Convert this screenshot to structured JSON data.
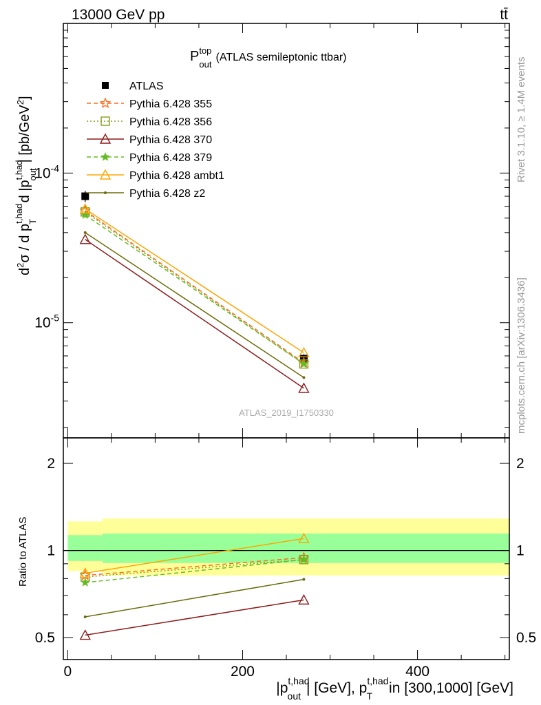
{
  "header": {
    "left_label": "13000 GeV pp",
    "right_label": "tt̄"
  },
  "side_notes": {
    "rivet": "Rivet 3.1.10, ≥ 1.4M events",
    "mcplots": "mcplots.cern.ch [arXiv:1306.3436]"
  },
  "watermark": "ATLAS_2019_I1750330",
  "chart_data": [
    {
      "type": "line",
      "panel": "main",
      "title_main": "P",
      "title_sup": "top",
      "title_sub": "out",
      "title_rest": "(ATLAS semileptonic ttbar)",
      "ylabel": "d²σ / d p_T^{t,had} d |p_out^{t,had}| [pb/GeV²]",
      "yscale": "log",
      "ylim": [
        1.7e-06,
        0.001
      ],
      "xlim": [
        -5,
        505
      ],
      "y_tick_labels": [
        "10^{-5}",
        "10^{-4}"
      ],
      "y_tick_values": [
        1e-05,
        0.0001
      ],
      "legend_position": "top-left",
      "x": [
        20,
        270
      ],
      "series": [
        {
          "name": "ATLAS",
          "color": "#000000",
          "marker": "square",
          "style": "none",
          "values": [
            7e-05,
            5.75e-06
          ],
          "errors": [
            6e-06,
            4e-07
          ]
        },
        {
          "name": "Pythia 6.428 355",
          "color": "#ff6a1a",
          "marker": "star-open",
          "style": "dashed",
          "values": [
            5.6e-05,
            5.4e-06
          ]
        },
        {
          "name": "Pythia 6.428 356",
          "color": "#7fa11a",
          "marker": "square-open",
          "style": "dotted",
          "values": [
            5.5e-05,
            5.3e-06
          ]
        },
        {
          "name": "Pythia 6.428 370",
          "color": "#8b1a1a",
          "marker": "triangle-open",
          "style": "solid",
          "values": [
            3.6e-05,
            3.65e-06
          ]
        },
        {
          "name": "Pythia 6.428 379",
          "color": "#66bb22",
          "marker": "star",
          "style": "dashed",
          "values": [
            5.25e-05,
            5.3e-06
          ]
        },
        {
          "name": "Pythia 6.428 ambt1",
          "color": "#ffa500",
          "marker": "triangle-open",
          "style": "solid",
          "values": [
            5.75e-05,
            6.3e-06
          ]
        },
        {
          "name": "Pythia 6.428 z2",
          "color": "#6b6b0a",
          "marker": "dot",
          "style": "solid",
          "values": [
            4e-05,
            4.3e-06
          ]
        }
      ]
    },
    {
      "type": "line",
      "panel": "ratio",
      "ylabel": "Ratio to ATLAS",
      "xlabel": "|p_out^{t,had}| [GeV], p_T^{t,had} in [300,1000] [GeV]",
      "yscale": "log",
      "ylim": [
        0.42,
        2.45
      ],
      "xlim": [
        -5,
        505
      ],
      "y_tick_labels": [
        "0.5",
        "1",
        "2"
      ],
      "y_tick_values": [
        0.5,
        1,
        2
      ],
      "x_tick_labels": [
        "0",
        "200",
        "400"
      ],
      "x_tick_values": [
        0,
        200,
        400
      ],
      "bands": [
        {
          "x_ranges": [
            [
              0,
              40,
              0.85,
              1.26
            ],
            [
              40,
              505,
              0.82,
              1.29
            ]
          ],
          "color": "#ffff99"
        },
        {
          "x_ranges": [
            [
              0,
              40,
              0.92,
              1.13
            ],
            [
              40,
              505,
              0.905,
              1.145
            ]
          ],
          "color": "#99ff99"
        }
      ],
      "x": [
        20,
        270
      ],
      "series": [
        {
          "name": "Pythia 6.428 355",
          "color": "#ff6a1a",
          "marker": "star-open",
          "style": "dashed",
          "values": [
            0.82,
            0.945
          ]
        },
        {
          "name": "Pythia 6.428 356",
          "color": "#7fa11a",
          "marker": "square-open",
          "style": "dotted",
          "values": [
            0.81,
            0.93
          ]
        },
        {
          "name": "Pythia 6.428 370",
          "color": "#8b1a1a",
          "marker": "triangle-open",
          "style": "solid",
          "values": [
            0.51,
            0.675
          ]
        },
        {
          "name": "Pythia 6.428 379",
          "color": "#66bb22",
          "marker": "star",
          "style": "dashed",
          "values": [
            0.775,
            0.93
          ]
        },
        {
          "name": "Pythia 6.428 ambt1",
          "color": "#ffa500",
          "marker": "triangle-open",
          "style": "solid",
          "values": [
            0.835,
            1.1
          ]
        },
        {
          "name": "Pythia 6.428 z2",
          "color": "#6b6b0a",
          "marker": "dot",
          "style": "solid",
          "values": [
            0.59,
            0.795
          ]
        }
      ]
    }
  ]
}
